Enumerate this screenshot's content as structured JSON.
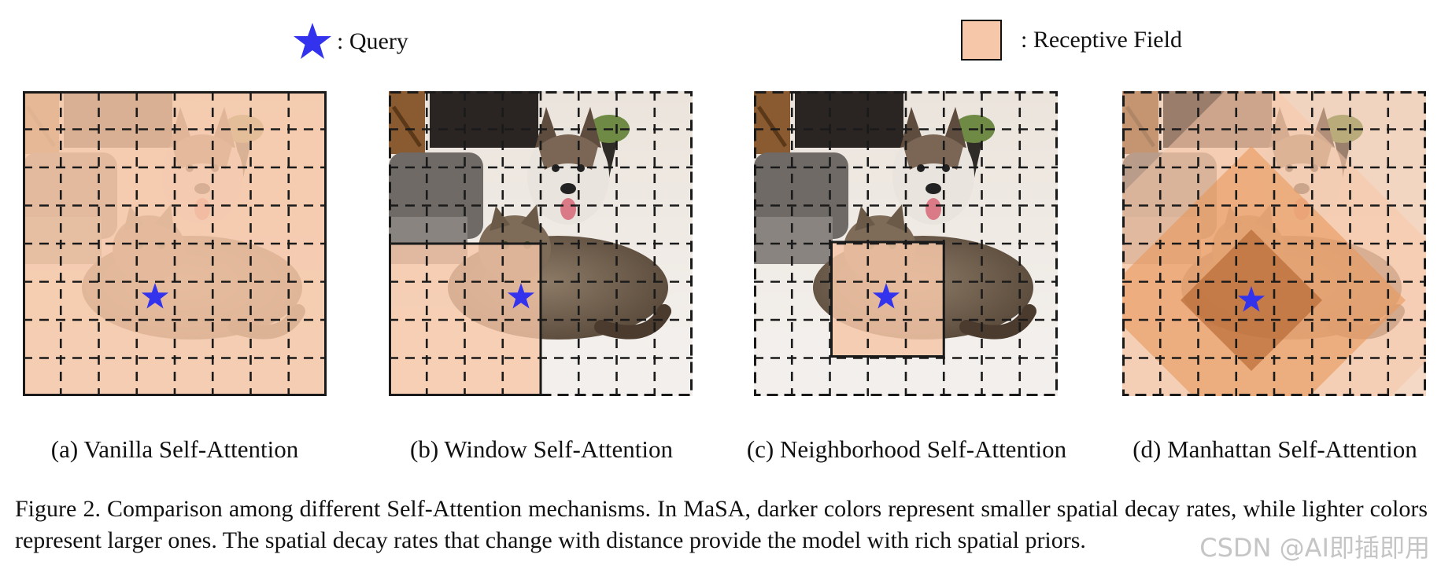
{
  "legend": {
    "query_label": ": Query",
    "receptive_field_label": ": Receptive Field",
    "query_color": "#3333ee",
    "receptive_field_color": "#f6c7a8"
  },
  "panels": [
    {
      "id": "a",
      "caption": "(a) Vanilla Self-Attention",
      "receptive_field": "full image"
    },
    {
      "id": "b",
      "caption": "(b) Window Self-Attention",
      "receptive_field": "window"
    },
    {
      "id": "c",
      "caption": "(c) Neighborhood Self-Attention",
      "receptive_field": "neighborhood"
    },
    {
      "id": "d",
      "caption": "(d) Manhattan Self-Attention",
      "receptive_field": "manhattan diamonds"
    }
  ],
  "figure_caption": "Figure 2.  Comparison among different Self-Attention mechanisms.  In MaSA, darker colors represent smaller spatial decay rates, while lighter colors represent larger ones. The spatial decay rates that change with distance provide the model with rich spatial priors.",
  "watermark": "CSDN @AI即插即用",
  "colors": {
    "rf_light": "#f6c7a8",
    "rf_mid": "#e8975c",
    "rf_dark": "#b0612c",
    "grid": "#1a1a1a"
  }
}
